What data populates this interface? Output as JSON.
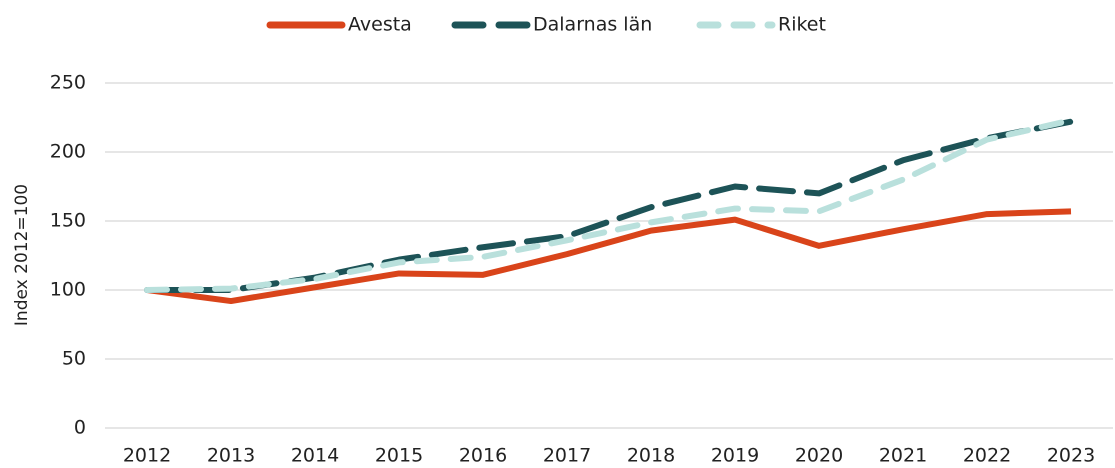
{
  "chart_data": {
    "type": "line",
    "y_label": "Index 2012=100",
    "categories": [
      "2012",
      "2013",
      "2014",
      "2015",
      "2016",
      "2017",
      "2018",
      "2019",
      "2020",
      "2021",
      "2022",
      "2023"
    ],
    "series": [
      {
        "name": "Avesta",
        "color": "#d9441a",
        "dashed": false,
        "values": [
          100,
          92,
          102,
          112,
          111,
          126,
          143,
          151,
          132,
          144,
          155,
          157
        ]
      },
      {
        "name": "Dalarnas län",
        "color": "#1d5357",
        "dashed": true,
        "values": [
          100,
          100,
          109,
          122,
          131,
          139,
          160,
          175,
          170,
          194,
          210,
          222
        ]
      },
      {
        "name": "Riket",
        "color": "#b9e0dc",
        "dashed": true,
        "values": [
          100,
          101,
          108,
          120,
          124,
          136,
          149,
          159,
          157,
          180,
          209,
          223
        ]
      }
    ],
    "ylim": [
      0,
      250
    ],
    "yticks": [
      0,
      50,
      100,
      150,
      200,
      250
    ],
    "grid": true,
    "legend": "top"
  }
}
